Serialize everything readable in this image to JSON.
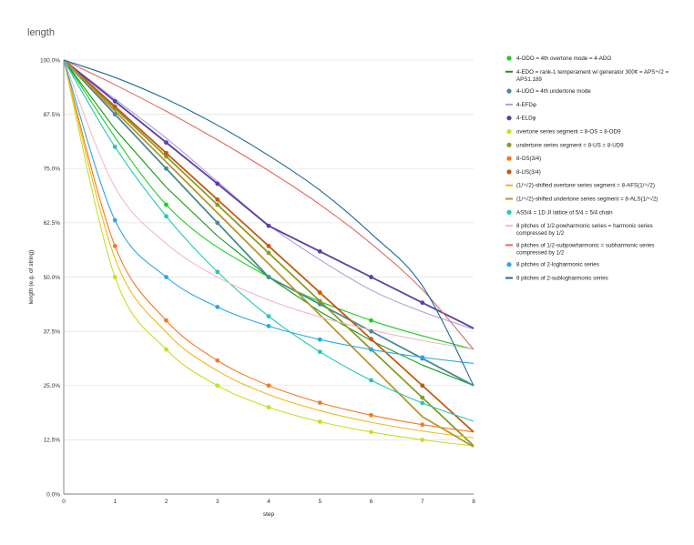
{
  "chart_data": {
    "type": "line",
    "title": "length",
    "xlabel": "step",
    "ylabel": "length (e.g. of string)",
    "xlim": [
      0,
      8
    ],
    "ylim": [
      0,
      1
    ],
    "x_ticks": [
      "0",
      "1",
      "2",
      "3",
      "4",
      "5",
      "6",
      "7",
      "8"
    ],
    "y_ticks": [
      "0.0%",
      "12.5%",
      "25.0%",
      "37.5%",
      "50.0%",
      "62.5%",
      "75.0%",
      "87.5%",
      "100.0%"
    ],
    "grid": true,
    "legend_position": "right",
    "series": [
      {
        "name": "4-ODO = 4th overtone mode = 4-ADO",
        "color": "#22cc22",
        "smooth": true,
        "markers": true,
        "x": [
          0,
          2,
          4,
          6,
          8
        ],
        "values": [
          1,
          0.6667,
          0.5,
          0.4,
          0.3333
        ]
      },
      {
        "name": "4-EDO = rank-1 temperament w/ generator 300¢ = APS⁴√2 = APS1.189",
        "color": "#119911",
        "smooth": false,
        "markers": false,
        "x": [
          0,
          1,
          2,
          3,
          4,
          5,
          6,
          7,
          8
        ],
        "values": [
          1,
          0.8409,
          0.7071,
          0.5946,
          0.5,
          0.4204,
          0.3536,
          0.2973,
          0.25
        ]
      },
      {
        "name": "4-UDO = 4th undertone mode",
        "color": "#4a8a96",
        "smooth": false,
        "markers": true,
        "x": [
          0,
          1,
          2,
          3,
          4,
          5,
          6,
          7,
          8
        ],
        "values": [
          1,
          0.875,
          0.75,
          0.625,
          0.5,
          0.4375,
          0.375,
          0.3125,
          0.25
        ]
      },
      {
        "name": "4-EFDφ",
        "color": "#b49cdc",
        "smooth": true,
        "markers": false,
        "x": [
          0,
          1,
          2,
          3,
          4,
          5,
          6,
          7,
          8
        ],
        "values": [
          1,
          0.91,
          0.82,
          0.72,
          0.62,
          0.54,
          0.47,
          0.42,
          0.38
        ]
      },
      {
        "name": "4-ELDφ",
        "color": "#5b3fa3",
        "smooth": false,
        "markers": true,
        "x": [
          0,
          1,
          2,
          3,
          4,
          5,
          6,
          7,
          8
        ],
        "values": [
          1,
          0.905,
          0.81,
          0.715,
          0.618,
          0.559,
          0.5,
          0.441,
          0.382
        ]
      },
      {
        "name": "overtone series segment = 8-OS = 8-OD9",
        "color": "#ccdd22",
        "smooth": true,
        "markers": true,
        "x": [
          0,
          1,
          2,
          3,
          4,
          5,
          6,
          7,
          8
        ],
        "values": [
          1,
          0.5,
          0.3333,
          0.25,
          0.2,
          0.1667,
          0.1429,
          0.125,
          0.1111
        ]
      },
      {
        "name": "undertone series segment = 8-US = 8-UD9",
        "color": "#8a9a22",
        "smooth": false,
        "markers": true,
        "x": [
          0,
          1,
          2,
          3,
          4,
          5,
          6,
          7,
          8
        ],
        "values": [
          1,
          0.8889,
          0.7778,
          0.6667,
          0.5556,
          0.4444,
          0.3333,
          0.2222,
          0.1111
        ]
      },
      {
        "name": "8-OS(3/4)",
        "color": "#f47a22",
        "smooth": true,
        "markers": true,
        "x": [
          0,
          1,
          2,
          3,
          4,
          5,
          6,
          7,
          8
        ],
        "values": [
          1,
          0.5714,
          0.4,
          0.3077,
          0.25,
          0.2105,
          0.1818,
          0.16,
          0.1429
        ]
      },
      {
        "name": "8-US(3/4)",
        "color": "#c45a10",
        "smooth": false,
        "markers": true,
        "x": [
          0,
          1,
          2,
          3,
          4,
          5,
          6,
          7,
          8
        ],
        "values": [
          1,
          0.8929,
          0.7857,
          0.6786,
          0.5714,
          0.4643,
          0.3571,
          0.25,
          0.1429
        ]
      },
      {
        "name": "(1/⁴√2)-shifted overtone series segment = 8-AFS(1/⁴√2)",
        "color": "#f0b820",
        "smooth": true,
        "markers": false,
        "x": [
          0,
          1,
          2,
          3,
          4,
          5,
          6,
          7,
          8
        ],
        "values": [
          1,
          0.5432,
          0.3728,
          0.2839,
          0.2293,
          0.1922,
          0.1654,
          0.1452,
          0.1294
        ]
      },
      {
        "name": "(1/⁴√2)-shifted undertone series segment = 8-ALS(1/⁴√2)",
        "color": "#b8962a",
        "smooth": false,
        "markers": false,
        "x": [
          0,
          1,
          2,
          3,
          4,
          5,
          6,
          7,
          8
        ],
        "values": [
          1,
          0.8826,
          0.7652,
          0.6478,
          0.5304,
          0.413,
          0.2956,
          0.1782,
          0.1088
        ]
      },
      {
        "name": "AS5/4 = 1D JI lattice of 5/4 = 5/4 chain",
        "color": "#22c9b4",
        "smooth": true,
        "markers": true,
        "x": [
          0,
          1,
          2,
          3,
          4,
          5,
          6,
          7,
          8
        ],
        "values": [
          1,
          0.8,
          0.64,
          0.512,
          0.4096,
          0.3277,
          0.2621,
          0.2097,
          0.1678
        ]
      },
      {
        "name": "8 pitches of 1/2-powharmonic series = harmonic series compressed by 1/2",
        "color": "#f4b8c8",
        "smooth": true,
        "markers": false,
        "x": [
          0,
          1,
          2,
          3,
          4,
          5,
          6,
          7,
          8
        ],
        "values": [
          1,
          0.7071,
          0.5774,
          0.5,
          0.4472,
          0.4082,
          0.378,
          0.3536,
          0.3333
        ]
      },
      {
        "name": "8 pitches of 1/2-subpowharmonic = subharmonic series compressed by 1/2",
        "color": "#e06a5e",
        "smooth": true,
        "markers": false,
        "x": [
          0,
          1,
          2,
          3,
          4,
          5,
          6,
          7,
          8
        ],
        "values": [
          1,
          0.943,
          0.882,
          0.816,
          0.745,
          0.667,
          0.577,
          0.471,
          0.333
        ]
      },
      {
        "name": "8 pitches of 2-logharmonic series",
        "color": "#2aa8e8",
        "smooth": true,
        "markers": true,
        "x": [
          0,
          1,
          2,
          3,
          4,
          5,
          6,
          7,
          8
        ],
        "values": [
          1,
          0.631,
          0.5,
          0.431,
          0.387,
          0.356,
          0.333,
          0.315,
          0.301
        ]
      },
      {
        "name": "8 pitches of 2-sublogharmonic series",
        "color": "#1a6a9a",
        "smooth": true,
        "markers": false,
        "x": [
          0,
          1,
          2,
          3,
          4,
          5,
          6,
          7,
          8
        ],
        "values": [
          1,
          0.96,
          0.91,
          0.85,
          0.78,
          0.7,
          0.6,
          0.48,
          0.25
        ]
      }
    ]
  }
}
